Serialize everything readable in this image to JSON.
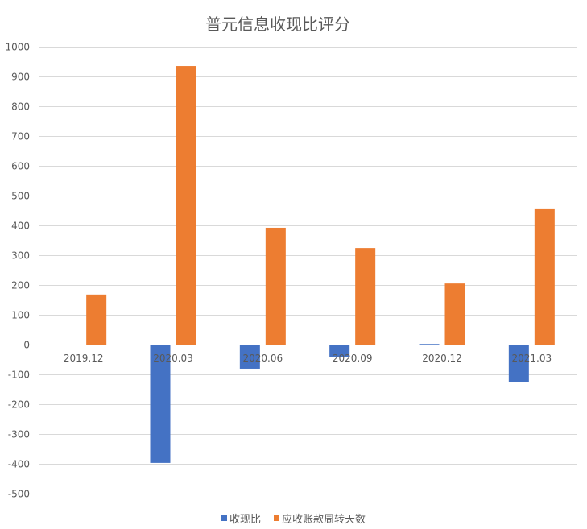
{
  "chart_data": {
    "type": "bar",
    "title": "普元信息收现比评分",
    "xlabel": "",
    "ylabel": "",
    "ylim": [
      -500,
      1000
    ],
    "yticks": [
      1000,
      900,
      800,
      700,
      600,
      500,
      400,
      300,
      200,
      100,
      0,
      -100,
      -200,
      -300,
      -400,
      -500
    ],
    "categories": [
      "2019.12",
      "2020.03",
      "2020.06",
      "2020.09",
      "2020.12",
      "2021.03"
    ],
    "series": [
      {
        "name": "收现比",
        "color": "#4472C4",
        "values": [
          -2,
          -397,
          -81,
          -43,
          2,
          -125
        ]
      },
      {
        "name": "应收账款周转天数",
        "color": "#ED7D31",
        "values": [
          168,
          935,
          392,
          324,
          205,
          457
        ]
      }
    ],
    "grid": true,
    "legend_position": "bottom"
  },
  "legend": {
    "items": [
      {
        "label": "收现比",
        "color": "#4472C4"
      },
      {
        "label": "应收账款周转天数",
        "color": "#ED7D31"
      }
    ]
  }
}
